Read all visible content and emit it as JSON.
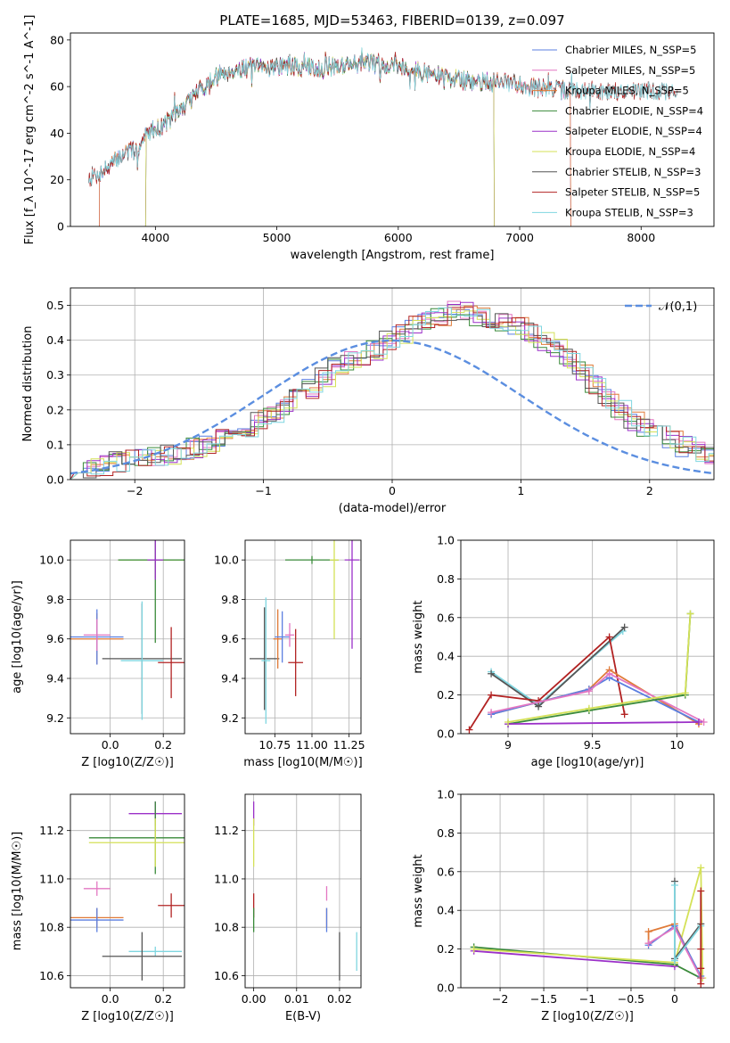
{
  "figure_title": "PLATE=1685, MJD=53463, FIBERID=0139, z=0.097",
  "chart_data": [
    {
      "id": "spectrum",
      "type": "line",
      "xlabel": "wavelength [Angstrom, rest frame]",
      "ylabel": "Flux [f_λ 10^-17 erg cm^-2 s^-1 A^-1]",
      "xlim": [
        3300,
        8600
      ],
      "ylim": [
        0,
        83
      ],
      "xticks": [
        4000,
        5000,
        6000,
        7000,
        8000
      ],
      "yticks": [
        0,
        20,
        40,
        60,
        80
      ],
      "grid": false,
      "legend_position": "top-right",
      "continuum": [
        [
          3450,
          21
        ],
        [
          3550,
          23
        ],
        [
          3650,
          27
        ],
        [
          3750,
          32
        ],
        [
          3850,
          33
        ],
        [
          3950,
          41
        ],
        [
          4050,
          43
        ],
        [
          4150,
          47
        ],
        [
          4250,
          52
        ],
        [
          4350,
          58
        ],
        [
          4450,
          62
        ],
        [
          4550,
          66
        ],
        [
          4650,
          67
        ],
        [
          4750,
          68
        ],
        [
          4850,
          68
        ],
        [
          5000,
          69
        ],
        [
          5200,
          68
        ],
        [
          5400,
          68
        ],
        [
          5600,
          70
        ],
        [
          5800,
          70
        ],
        [
          6000,
          69
        ],
        [
          6200,
          66
        ],
        [
          6400,
          64
        ],
        [
          6600,
          62
        ],
        [
          6800,
          62
        ],
        [
          7000,
          61
        ],
        [
          7200,
          59
        ],
        [
          7500,
          58
        ],
        [
          7800,
          58
        ],
        [
          8100,
          58
        ],
        [
          8300,
          58
        ]
      ],
      "series": [
        {
          "name": "Chabrier MILES, N_SSP=5",
          "color": "#5b7fe0",
          "range": [
            3540,
            7420
          ]
        },
        {
          "name": "Salpeter MILES, N_SSP=5",
          "color": "#e377c2",
          "range": [
            3540,
            7420
          ]
        },
        {
          "name": "Kroupa MILES, N_SSP=5",
          "color": "#e07b39",
          "range": [
            3540,
            7420
          ]
        },
        {
          "name": "Chabrier ELODIE, N_SSP=4",
          "color": "#3a8a3a",
          "range": [
            3920,
            6790
          ]
        },
        {
          "name": "Salpeter ELODIE, N_SSP=4",
          "color": "#9b30c8",
          "range": [
            3920,
            6790
          ]
        },
        {
          "name": "Kroupa ELODIE, N_SSP=4",
          "color": "#d4e157",
          "range": [
            3920,
            6790
          ]
        },
        {
          "name": "Chabrier STELIB, N_SSP=3",
          "color": "#555555",
          "range": [
            3450,
            8300
          ]
        },
        {
          "name": "Salpeter STELIB, N_SSP=5",
          "color": "#b22222",
          "range": [
            3450,
            8300
          ]
        },
        {
          "name": "Kroupa STELIB, N_SSP=3",
          "color": "#7fd6e0",
          "range": [
            3450,
            8300
          ]
        }
      ]
    },
    {
      "id": "residuals",
      "type": "line",
      "xlabel": "(data-model)/error",
      "ylabel": "Normed distribution",
      "xlim": [
        -2.5,
        2.5
      ],
      "ylim": [
        0,
        0.55
      ],
      "xticks": [
        -2,
        -1,
        0,
        1,
        2
      ],
      "yticks": [
        0.0,
        0.1,
        0.2,
        0.3,
        0.4,
        0.5
      ],
      "grid": true,
      "legend": "𝒩(0,1)",
      "legend_position": "top-right",
      "gaussian": {
        "mean": 0,
        "sigma": 1,
        "color": "#5b8ee0"
      },
      "bin_width": 0.1,
      "base_histogram": [
        0.028,
        0.033,
        0.04,
        0.05,
        0.055,
        0.06,
        0.065,
        0.07,
        0.08,
        0.09,
        0.1,
        0.115,
        0.13,
        0.15,
        0.17,
        0.19,
        0.21,
        0.23,
        0.26,
        0.29,
        0.32,
        0.34,
        0.35,
        0.37,
        0.4,
        0.42,
        0.44,
        0.46,
        0.47,
        0.485,
        0.48,
        0.47,
        0.46,
        0.45,
        0.435,
        0.42,
        0.4,
        0.38,
        0.35,
        0.31,
        0.27,
        0.23,
        0.2,
        0.17,
        0.15,
        0.13,
        0.11,
        0.095,
        0.08,
        0.07
      ],
      "series_colors": [
        "#5b7fe0",
        "#e377c2",
        "#e07b39",
        "#3a8a3a",
        "#9b30c8",
        "#d4e157",
        "#555555",
        "#b22222",
        "#7fd6e0"
      ]
    },
    {
      "id": "age_vs_Z",
      "type": "scatter",
      "xlabel": "Z [log10(Z/Z☉)]",
      "ylabel": "age [log10(age/yr)]",
      "xlim": [
        -0.15,
        0.28
      ],
      "ylim": [
        9.12,
        10.1
      ],
      "xticks": [
        0.0,
        0.2
      ],
      "xtick_labels": [
        "0.0",
        "0.2"
      ],
      "yticks": [
        9.2,
        9.4,
        9.6,
        9.8,
        10.0
      ],
      "grid": true,
      "points": [
        {
          "x": -0.05,
          "y": 9.6,
          "xerr": 0.1,
          "yerr": 0.13,
          "color": "#e07b39"
        },
        {
          "x": -0.05,
          "y": 9.61,
          "xerr": 0.1,
          "yerr": 0.14,
          "color": "#5b7fe0"
        },
        {
          "x": -0.05,
          "y": 9.62,
          "xerr": 0.05,
          "yerr": 0.08,
          "color": "#e377c2"
        },
        {
          "x": 0.12,
          "y": 9.5,
          "xerr": 0.15,
          "yerr": 0.28,
          "color": "#555555"
        },
        {
          "x": 0.12,
          "y": 9.49,
          "xerr": 0.08,
          "yerr": 0.3,
          "color": "#7fd6e0"
        },
        {
          "x": 0.17,
          "y": 10.0,
          "xerr": 0.14,
          "yerr": 0.09,
          "color": "#d4e157"
        },
        {
          "x": 0.17,
          "y": 10.0,
          "xerr": 0.14,
          "yerr": 0.42,
          "color": "#3a8a3a"
        },
        {
          "x": 0.17,
          "y": 10.0,
          "xerr": 0.03,
          "yerr": 0.1,
          "color": "#9b30c8"
        },
        {
          "x": 0.23,
          "y": 9.48,
          "xerr": 0.05,
          "yerr": 0.18,
          "color": "#b22222"
        }
      ]
    },
    {
      "id": "age_vs_mass",
      "type": "scatter",
      "xlabel": "mass [log10(M/M☉)]",
      "ylabel": "",
      "xlim": [
        10.55,
        11.33
      ],
      "ylim": [
        9.12,
        10.1
      ],
      "xticks": [
        10.75,
        11.0,
        11.25
      ],
      "xtick_labels": [
        "10.75",
        "11.00",
        "11.25"
      ],
      "yticks": [
        9.2,
        9.4,
        9.6,
        9.8,
        10.0
      ],
      "grid": true,
      "points": [
        {
          "x": 10.68,
          "y": 9.5,
          "xerr": 0.1,
          "yerr": 0.26,
          "color": "#555555"
        },
        {
          "x": 10.69,
          "y": 9.49,
          "xerr": 0.03,
          "yerr": 0.32,
          "color": "#7fd6e0"
        },
        {
          "x": 10.77,
          "y": 9.6,
          "xerr": 0.03,
          "yerr": 0.15,
          "color": "#e07b39"
        },
        {
          "x": 10.8,
          "y": 9.61,
          "xerr": 0.05,
          "yerr": 0.13,
          "color": "#5b7fe0"
        },
        {
          "x": 10.85,
          "y": 9.62,
          "xerr": 0.03,
          "yerr": 0.06,
          "color": "#e377c2"
        },
        {
          "x": 10.89,
          "y": 9.48,
          "xerr": 0.05,
          "yerr": 0.17,
          "color": "#b22222"
        },
        {
          "x": 11.0,
          "y": 10.0,
          "xerr": 0.18,
          "yerr": 0.02,
          "color": "#3a8a3a"
        },
        {
          "x": 11.15,
          "y": 10.0,
          "xerr": 0.03,
          "yerr": 0.4,
          "color": "#d4e157"
        },
        {
          "x": 11.27,
          "y": 10.0,
          "xerr": 0.05,
          "yerr": 0.45,
          "color": "#9b30c8"
        }
      ]
    },
    {
      "id": "weight_vs_age",
      "type": "line",
      "xlabel": "age [log10(age/yr)]",
      "ylabel": "mass weight",
      "xlim": [
        8.72,
        10.22
      ],
      "ylim": [
        0,
        1
      ],
      "xticks": [
        9.0,
        9.5,
        10.0
      ],
      "yticks": [
        0.0,
        0.2,
        0.4,
        0.6,
        0.8,
        1.0
      ],
      "grid": true,
      "series": [
        {
          "color": "#7fd6e0",
          "points": [
            [
              8.9,
              0.32
            ],
            [
              9.18,
              0.15
            ],
            [
              9.68,
              0.53
            ]
          ]
        },
        {
          "color": "#555555",
          "points": [
            [
              8.9,
              0.31
            ],
            [
              9.18,
              0.14
            ],
            [
              9.69,
              0.55
            ]
          ]
        },
        {
          "color": "#b22222",
          "points": [
            [
              8.77,
              0.02
            ],
            [
              8.9,
              0.2
            ],
            [
              9.18,
              0.17
            ],
            [
              9.6,
              0.5
            ],
            [
              9.69,
              0.1
            ]
          ]
        },
        {
          "color": "#e07b39",
          "points": [
            [
              8.9,
              0.1
            ],
            [
              9.48,
              0.23
            ],
            [
              9.6,
              0.33
            ],
            [
              10.13,
              0.05
            ]
          ]
        },
        {
          "color": "#5b7fe0",
          "points": [
            [
              8.9,
              0.1
            ],
            [
              9.48,
              0.23
            ],
            [
              9.6,
              0.29
            ],
            [
              10.13,
              0.06
            ]
          ]
        },
        {
          "color": "#e377c2",
          "points": [
            [
              8.9,
              0.11
            ],
            [
              9.48,
              0.22
            ],
            [
              9.6,
              0.31
            ],
            [
              10.16,
              0.06
            ]
          ]
        },
        {
          "color": "#3a8a3a",
          "points": [
            [
              9.0,
              0.05
            ],
            [
              9.48,
              0.12
            ],
            [
              10.05,
              0.2
            ],
            [
              10.08,
              0.62
            ]
          ]
        },
        {
          "color": "#9b30c8",
          "points": [
            [
              9.0,
              0.05
            ],
            [
              10.13,
              0.06
            ]
          ]
        },
        {
          "color": "#d4e157",
          "points": [
            [
              9.0,
              0.06
            ],
            [
              9.48,
              0.13
            ],
            [
              10.05,
              0.21
            ],
            [
              10.08,
              0.62
            ]
          ]
        }
      ]
    },
    {
      "id": "mass_vs_Z",
      "type": "scatter",
      "xlabel": "Z [log10(Z/Z☉)]",
      "ylabel": "mass [log10(M/M☉)]",
      "xlim": [
        -0.15,
        0.28
      ],
      "ylim": [
        10.55,
        11.35
      ],
      "xticks": [
        0.0,
        0.2
      ],
      "xtick_labels": [
        "0.0",
        "0.2"
      ],
      "yticks": [
        10.6,
        10.8,
        11.0,
        11.2
      ],
      "grid": true,
      "points": [
        {
          "x": 0.17,
          "y": 11.27,
          "xerr": 0.1,
          "yerr": 0.05,
          "color": "#9b30c8"
        },
        {
          "x": 0.17,
          "y": 11.17,
          "xerr": 0.25,
          "yerr": 0.15,
          "color": "#3a8a3a"
        },
        {
          "x": 0.17,
          "y": 11.15,
          "xerr": 0.25,
          "yerr": 0.1,
          "color": "#d4e157"
        },
        {
          "x": -0.05,
          "y": 10.96,
          "xerr": 0.05,
          "yerr": 0.03,
          "color": "#e377c2"
        },
        {
          "x": 0.23,
          "y": 10.89,
          "xerr": 0.05,
          "yerr": 0.05,
          "color": "#b22222"
        },
        {
          "x": -0.05,
          "y": 10.84,
          "xerr": 0.1,
          "yerr": 0.04,
          "color": "#e07b39"
        },
        {
          "x": -0.05,
          "y": 10.83,
          "xerr": 0.1,
          "yerr": 0.05,
          "color": "#5b7fe0"
        },
        {
          "x": 0.17,
          "y": 10.7,
          "xerr": 0.1,
          "yerr": 0.02,
          "color": "#7fd6e0"
        },
        {
          "x": 0.12,
          "y": 10.68,
          "xerr": 0.15,
          "yerr": 0.1,
          "color": "#555555"
        }
      ]
    },
    {
      "id": "mass_vs_ebv",
      "type": "scatter",
      "xlabel": "E(B-V)",
      "ylabel": "",
      "xlim": [
        -0.002,
        0.025
      ],
      "ylim": [
        10.55,
        11.35
      ],
      "xticks": [
        0.0,
        0.01,
        0.02
      ],
      "xtick_labels": [
        "0.00",
        "0.01",
        "0.02"
      ],
      "yticks": [
        10.6,
        10.8,
        11.0,
        11.2
      ],
      "grid": true,
      "points": [
        {
          "x": 0.0,
          "y": 11.27,
          "xerr": 0,
          "yerr": 0.05,
          "color": "#9b30c8"
        },
        {
          "x": 0.0,
          "y": 11.15,
          "xerr": 0,
          "yerr": 0.1,
          "color": "#d4e157"
        },
        {
          "x": 0.0,
          "y": 10.89,
          "xerr": 0,
          "yerr": 0.05,
          "color": "#b22222"
        },
        {
          "x": 0.0,
          "y": 10.83,
          "xerr": 0,
          "yerr": 0.05,
          "color": "#3a8a3a"
        },
        {
          "x": 0.017,
          "y": 10.94,
          "xerr": 0,
          "yerr": 0.03,
          "color": "#e377c2"
        },
        {
          "x": 0.017,
          "y": 10.84,
          "xerr": 0,
          "yerr": 0.04,
          "color": "#e07b39"
        },
        {
          "x": 0.017,
          "y": 10.83,
          "xerr": 0,
          "yerr": 0.05,
          "color": "#5b7fe0"
        },
        {
          "x": 0.02,
          "y": 10.68,
          "xerr": 0,
          "yerr": 0.1,
          "color": "#555555"
        },
        {
          "x": 0.024,
          "y": 10.7,
          "xerr": 0,
          "yerr": 0.08,
          "color": "#7fd6e0"
        }
      ]
    },
    {
      "id": "weight_vs_Z",
      "type": "line",
      "xlabel": "Z [log10(Z/Z☉)]",
      "ylabel": "mass weight",
      "xlim": [
        -2.45,
        0.45
      ],
      "ylim": [
        0,
        1
      ],
      "xticks": [
        -2.0,
        -1.5,
        -1.0,
        -0.5,
        0.0
      ],
      "yticks": [
        0.0,
        0.2,
        0.4,
        0.6,
        0.8,
        1.0
      ],
      "grid": true,
      "series": [
        {
          "color": "#3a8a3a",
          "points": [
            [
              -2.3,
              0.21
            ],
            [
              0.0,
              0.12
            ],
            [
              0.3,
              0.05
            ]
          ]
        },
        {
          "color": "#9b30c8",
          "points": [
            [
              -2.3,
              0.19
            ],
            [
              0.0,
              0.11
            ]
          ]
        },
        {
          "color": "#d4e157",
          "points": [
            [
              -2.3,
              0.2
            ],
            [
              0.0,
              0.13
            ],
            [
              0.3,
              0.62
            ],
            [
              0.32,
              0.05
            ]
          ]
        },
        {
          "color": "#e07b39",
          "points": [
            [
              -0.3,
              0.23
            ],
            [
              -0.3,
              0.29
            ],
            [
              0.0,
              0.33
            ],
            [
              0.3,
              0.05
            ]
          ]
        },
        {
          "color": "#5b7fe0",
          "points": [
            [
              -0.3,
              0.22
            ],
            [
              0.0,
              0.32
            ],
            [
              0.3,
              0.06
            ]
          ]
        },
        {
          "color": "#e377c2",
          "points": [
            [
              -0.3,
              0.23
            ],
            [
              0.0,
              0.31
            ],
            [
              0.3,
              0.05
            ]
          ]
        },
        {
          "color": "#555555",
          "points": [
            [
              0.0,
              0.55
            ],
            [
              0.0,
              0.15
            ],
            [
              0.3,
              0.33
            ]
          ]
        },
        {
          "color": "#7fd6e0",
          "points": [
            [
              0.0,
              0.53
            ],
            [
              0.0,
              0.14
            ],
            [
              0.3,
              0.32
            ]
          ]
        },
        {
          "color": "#b22222",
          "points": [
            [
              0.3,
              0.5
            ],
            [
              0.3,
              0.2
            ],
            [
              0.3,
              0.1
            ],
            [
              0.3,
              0.02
            ]
          ]
        }
      ]
    }
  ]
}
